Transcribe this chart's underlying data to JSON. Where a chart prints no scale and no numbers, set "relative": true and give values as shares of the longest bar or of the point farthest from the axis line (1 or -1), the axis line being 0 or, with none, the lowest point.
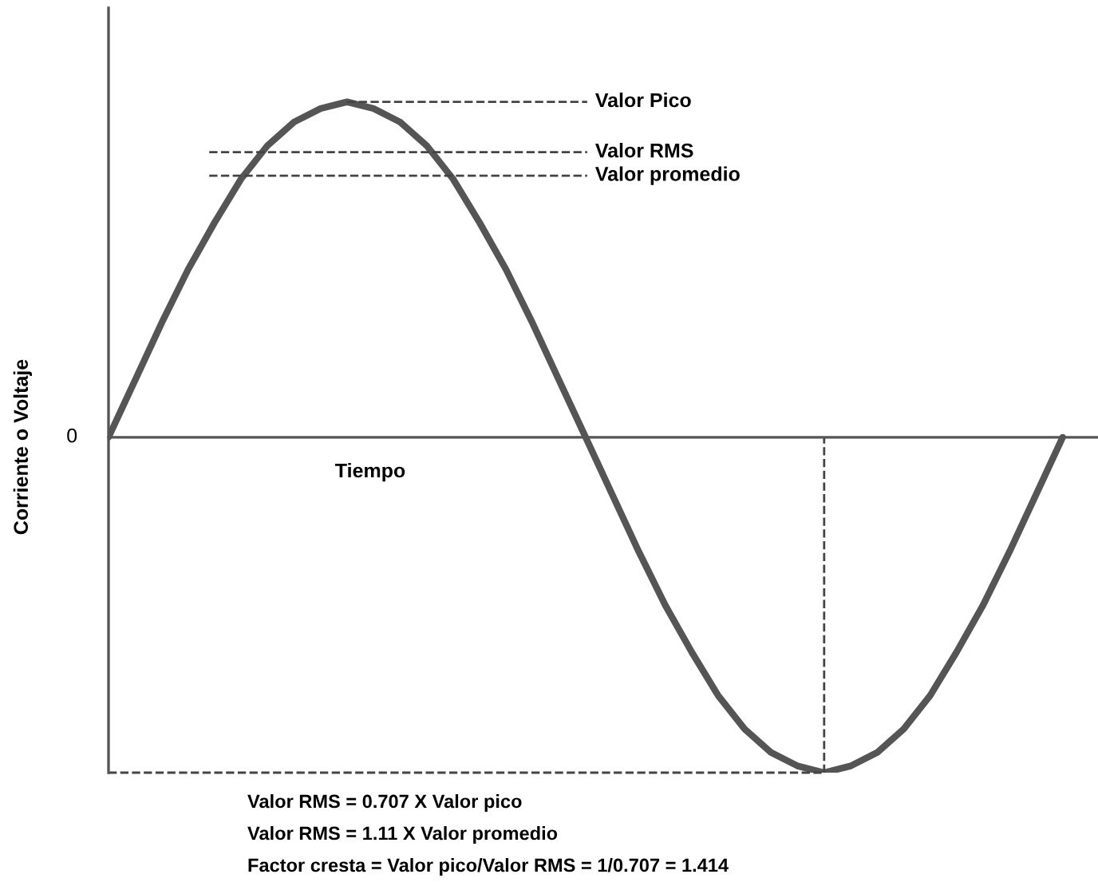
{
  "chart_data": {
    "type": "line",
    "relative": true,
    "xlabel": "Tiempo",
    "ylabel": "Corriente o Voltaje",
    "categories": [
      null,
      null,
      null,
      null,
      null,
      null,
      null,
      null,
      null,
      null,
      null,
      null,
      null,
      null,
      null,
      null,
      null,
      null,
      null,
      null,
      null,
      null,
      null,
      null,
      null,
      null,
      null,
      null,
      null,
      null,
      null,
      null,
      null,
      null,
      null,
      null,
      null
    ],
    "series": [
      {
        "color": "#555555",
        "values": [
          0,
          0.17,
          0.34,
          0.5,
          0.64,
          0.77,
          0.87,
          0.94,
          0.98,
          1,
          0.98,
          0.94,
          0.87,
          0.77,
          0.64,
          0.5,
          0.34,
          0.17,
          0,
          -0.17,
          -0.34,
          -0.5,
          -0.64,
          -0.77,
          -0.87,
          -0.94,
          -0.98,
          -1,
          -0.98,
          -0.94,
          -0.87,
          -0.77,
          -0.64,
          -0.5,
          -0.34,
          -0.17,
          0
        ]
      }
    ],
    "ref_lines": [
      {
        "axis": "y",
        "value": 1,
        "label": "Valor Pico",
        "line_style": "dashed",
        "color": "#444444"
      },
      {
        "axis": "y",
        "value": 0.85,
        "label": "Valor RMS",
        "line_style": "dashed",
        "color": "#444444"
      },
      {
        "axis": "y",
        "value": 0.78,
        "label": "Valor promedio",
        "line_style": "dashed",
        "color": "#444444"
      },
      {
        "axis": "y",
        "value": -1,
        "line_style": "dashed",
        "color": "#444444"
      }
    ],
    "annotations": [
      "0",
      "Valor RMS = 0.707 X Valor pico",
      "Valor RMS = 1.11 X Valor promedio",
      "Factor cresta = Valor pico/Valor RMS = 1/0.707 = 1.414"
    ],
    "marker": "none",
    "line_style": "solid"
  }
}
